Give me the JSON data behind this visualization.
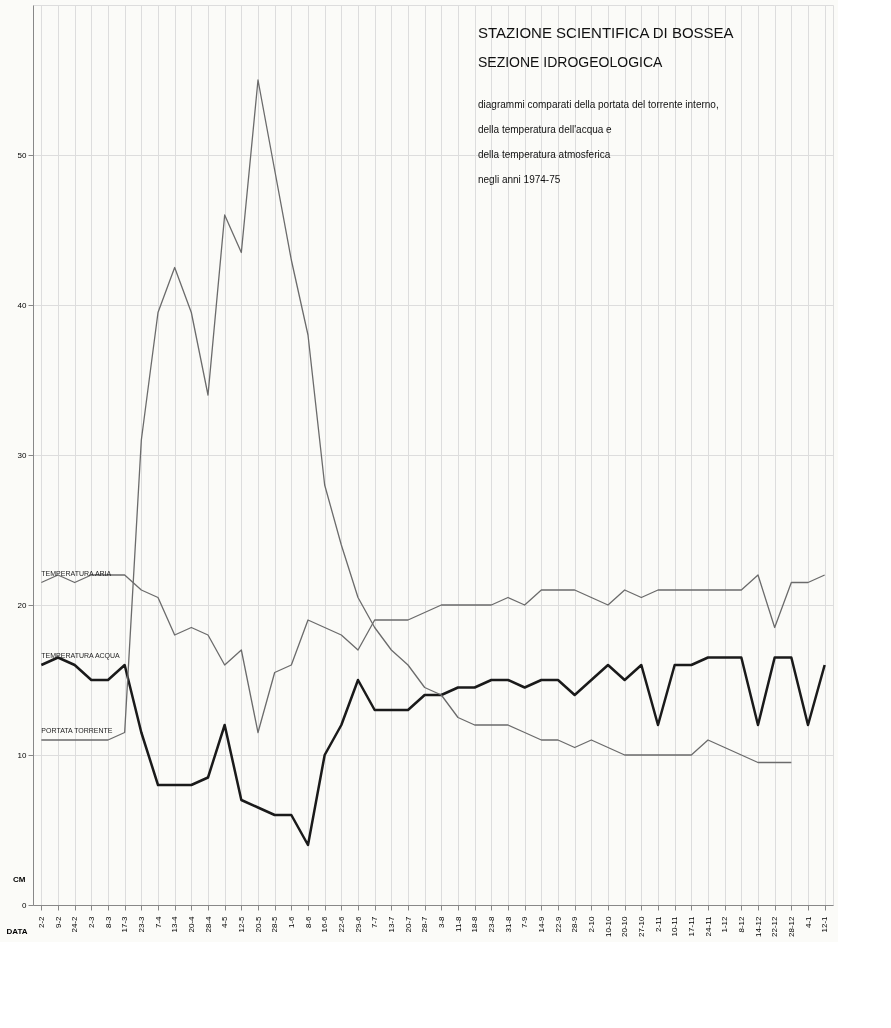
{
  "chart_data": {
    "type": "line",
    "title": "STAZIONE  SCIENTIFICA  DI  BOSSEA",
    "subtitle": "SEZIONE  IDROGEOLOGICA",
    "annotations": [
      "diagrammi comparati della portata del torrente interno,",
      "della temperatura dell'acqua e",
      "della temperatura atmosferica",
      "negli anni 1974-75"
    ],
    "xlabel": "DATA",
    "ylabel": "CM",
    "categories": [
      "2-2",
      "9-2",
      "24-2",
      "2-3",
      "8-3",
      "17-3",
      "23-3",
      "7-4",
      "13-4",
      "20-4",
      "28-4",
      "4-5",
      "12-5",
      "20-5",
      "28-5",
      "1-6",
      "8-6",
      "16-6",
      "22-6",
      "29-6",
      "7-7",
      "13-7",
      "20-7",
      "28-7",
      "3-8",
      "11-8",
      "18-8",
      "23-8",
      "31-8",
      "7-9",
      "14-9",
      "22-9",
      "28-9",
      "2-10",
      "10-10",
      "20-10",
      "27-10",
      "2-11",
      "10-11",
      "17-11",
      "24-11",
      "1-12",
      "8-12",
      "14-12",
      "22-12",
      "28-12",
      "4-1",
      "12-1"
    ],
    "series": [
      {
        "name": "TEMPERATURA ARIA",
        "color": "#6b6b6b",
        "values": [
          21.5,
          22,
          21.5,
          22,
          22,
          22,
          21,
          20.5,
          18,
          18.5,
          18,
          16,
          17,
          11.5,
          15.5,
          16,
          19,
          18.5,
          18,
          17,
          19,
          19,
          19,
          19.5,
          20,
          20,
          20,
          20,
          20.5,
          20,
          21,
          21,
          21,
          20.5,
          20,
          21,
          20.5,
          21,
          21,
          21,
          21,
          21,
          21,
          22,
          18.5,
          21.5,
          21.5,
          22
        ]
      },
      {
        "name": "TEMPERATURA ACQUA",
        "color": "#1a1a1a",
        "values": [
          16,
          16.5,
          16,
          15,
          15,
          16,
          11.5,
          8,
          8,
          8,
          8.5,
          12,
          7,
          6.5,
          6,
          6,
          4,
          10,
          12,
          15,
          13,
          13,
          13,
          14,
          14,
          14.5,
          14.5,
          15,
          15,
          14.5,
          15,
          15,
          14,
          15,
          16,
          15,
          16,
          12,
          16,
          16,
          16.5,
          16.5,
          16.5,
          12,
          16.5,
          16.5,
          12,
          16
        ]
      },
      {
        "name": "PORTATA TORRENTE",
        "color": "#6b6b6b",
        "values": [
          11,
          11,
          11,
          11,
          11,
          11.5,
          31,
          39.5,
          42.5,
          39.5,
          34,
          46,
          43.5,
          55,
          49,
          43,
          38,
          28,
          24,
          20.5,
          18.5,
          17,
          16,
          14.5,
          14,
          12.5,
          12,
          12,
          12,
          11.5,
          11,
          11,
          10.5,
          11,
          10.5,
          10,
          10,
          10,
          10,
          10,
          11,
          10.5,
          10,
          9.5,
          9.5,
          9.5,
          null,
          null
        ]
      }
    ],
    "ylim": [
      0,
      60
    ],
    "yticks": [
      0,
      10,
      20,
      30,
      40,
      50
    ],
    "grid": true,
    "legend": false,
    "marker": "none",
    "line_style": "solid"
  }
}
